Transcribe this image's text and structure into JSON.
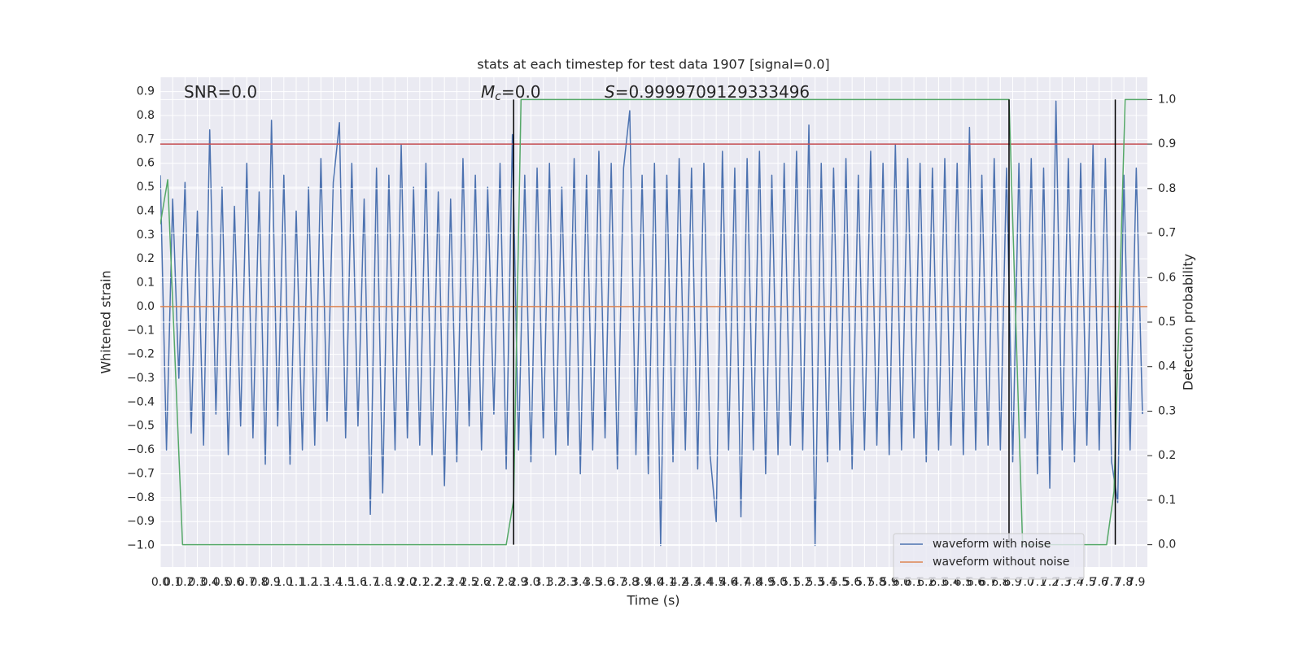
{
  "chart_data": {
    "type": "line",
    "title": "stats at each timestep for test data 1907 [signal=0.0]",
    "xlabel": "Time (s)",
    "ylabel": "Whitened strain",
    "y2label": "Detection probability",
    "annotations": [
      {
        "text": "SNR=0.0"
      },
      {
        "symbol": "M",
        "subscript": "c",
        "text": "=0.0"
      },
      {
        "symbol": "S",
        "text": "=0.9999709129333496"
      }
    ],
    "xlim": [
      0,
      7.99
    ],
    "ylim": [
      -1.09,
      0.96
    ],
    "y2lim": [
      -0.05,
      1.05
    ],
    "grid": true,
    "legend": "lower right",
    "xticks": [
      {
        "value": 0,
        "label": "0.0"
      },
      0.1,
      0.2,
      0.3,
      0.4,
      0.5,
      0.6,
      0.7,
      0.8,
      0.9,
      {
        "value": 1,
        "label": "1.0"
      },
      1.1,
      1.2,
      1.3,
      1.4,
      1.5,
      1.6,
      1.7,
      1.8,
      1.9,
      {
        "value": 2,
        "label": "2.0"
      },
      2.1,
      2.2,
      2.3,
      2.4,
      2.5,
      2.6,
      2.7,
      2.8,
      2.9,
      {
        "value": 3,
        "label": "3.0"
      },
      3.1,
      3.2,
      3.3,
      3.4,
      3.5,
      3.6,
      3.7,
      3.8,
      3.9,
      {
        "value": 4,
        "label": "4.0"
      },
      4.1,
      4.2,
      4.3,
      4.4,
      4.5,
      4.6,
      4.7,
      4.8,
      4.9,
      {
        "value": 5,
        "label": "5.0"
      },
      5.1,
      5.2,
      5.3,
      5.4,
      5.5,
      5.6,
      5.7,
      5.8,
      5.9,
      {
        "value": 6,
        "label": "6.0"
      },
      6.1,
      6.2,
      6.3,
      6.4,
      6.5,
      6.6,
      6.7,
      6.8,
      6.9,
      {
        "value": 7,
        "label": "7.0"
      },
      7.1,
      7.2,
      7.3,
      7.4,
      7.5,
      7.6,
      7.7,
      7.8,
      7.9
    ],
    "yticks": [
      {
        "value": -1.0,
        "label": "−1.0"
      },
      {
        "value": -0.9,
        "label": "−0.9"
      },
      {
        "value": -0.8,
        "label": "−0.8"
      },
      {
        "value": -0.7,
        "label": "−0.7"
      },
      {
        "value": -0.6,
        "label": "−0.6"
      },
      {
        "value": -0.5,
        "label": "−0.5"
      },
      {
        "value": -0.4,
        "label": "−0.4"
      },
      {
        "value": -0.3,
        "label": "−0.3"
      },
      {
        "value": -0.2,
        "label": "−0.2"
      },
      {
        "value": -0.1,
        "label": "−0.1"
      },
      {
        "value": 0,
        "label": "0.0"
      },
      0.1,
      0.2,
      0.3,
      0.4,
      0.5,
      0.6,
      0.7,
      0.8,
      0.9
    ],
    "y2ticks": [
      {
        "value": 0,
        "label": "0.0"
      },
      0.1,
      0.2,
      0.3,
      0.4,
      0.5,
      0.6,
      0.7,
      0.8,
      0.9,
      {
        "value": 1,
        "label": "1.0"
      }
    ],
    "threshold": {
      "value": 0.9,
      "axis": "y2",
      "color": "#c44e52"
    },
    "detections": {
      "x": [
        2.86,
        6.87,
        7.73
      ],
      "ymin": 0,
      "ymax": 1,
      "axis": "y2",
      "color": "#000000"
    },
    "series": [
      {
        "name": "waveform with noise",
        "color": "#4c72b0",
        "x": [
          0,
          0.05,
          0.1,
          0.15,
          0.2,
          0.25,
          0.3,
          0.35,
          0.4,
          0.45,
          0.5,
          0.55,
          0.6,
          0.65,
          0.7,
          0.75,
          0.8,
          0.85,
          0.9,
          0.95,
          1,
          1.05,
          1.1,
          1.15,
          1.2,
          1.25,
          1.3,
          1.35,
          1.4,
          1.45,
          1.5,
          1.55,
          1.6,
          1.65,
          1.7,
          1.75,
          1.8,
          1.85,
          1.9,
          1.95,
          2,
          2.05,
          2.1,
          2.15,
          2.2,
          2.25,
          2.3,
          2.35,
          2.4,
          2.45,
          2.5,
          2.55,
          2.6,
          2.65,
          2.7,
          2.75,
          2.8,
          2.85,
          2.9,
          2.95,
          3,
          3.05,
          3.1,
          3.15,
          3.2,
          3.25,
          3.3,
          3.35,
          3.4,
          3.45,
          3.5,
          3.55,
          3.6,
          3.65,
          3.7,
          3.75,
          3.8,
          3.85,
          3.9,
          3.95,
          4,
          4.05,
          4.1,
          4.15,
          4.2,
          4.25,
          4.3,
          4.35,
          4.4,
          4.45,
          4.5,
          4.55,
          4.6,
          4.65,
          4.7,
          4.75,
          4.8,
          4.85,
          4.9,
          4.95,
          5,
          5.05,
          5.1,
          5.15,
          5.2,
          5.25,
          5.3,
          5.35,
          5.4,
          5.45,
          5.5,
          5.55,
          5.6,
          5.65,
          5.7,
          5.75,
          5.8,
          5.85,
          5.9,
          5.95,
          6,
          6.05,
          6.1,
          6.15,
          6.2,
          6.25,
          6.3,
          6.35,
          6.4,
          6.45,
          6.5,
          6.55,
          6.6,
          6.65,
          6.7,
          6.75,
          6.8,
          6.85,
          6.9,
          6.95,
          7,
          7.05,
          7.1,
          7.15,
          7.2,
          7.25,
          7.3,
          7.35,
          7.4,
          7.45,
          7.5,
          7.55,
          7.6,
          7.65,
          7.7,
          7.75,
          7.8,
          7.85,
          7.9,
          7.95
        ],
        "values": [
          0.55,
          -0.6,
          0.45,
          -0.3,
          0.52,
          -0.53,
          0.4,
          -0.58,
          0.74,
          -0.45,
          0.5,
          -0.62,
          0.42,
          -0.5,
          0.6,
          -0.55,
          0.48,
          -0.66,
          0.78,
          -0.5,
          0.55,
          -0.66,
          0.4,
          -0.6,
          0.5,
          -0.58,
          0.62,
          -0.48,
          0.52,
          0.77,
          -0.55,
          0.6,
          -0.5,
          0.45,
          -0.87,
          0.58,
          -0.78,
          0.55,
          -0.6,
          0.68,
          -0.55,
          0.5,
          -0.58,
          0.6,
          -0.62,
          0.48,
          -0.75,
          0.45,
          -0.65,
          0.62,
          -0.5,
          0.55,
          -0.6,
          0.5,
          -0.45,
          0.6,
          -0.68,
          0.72,
          -0.6,
          0.55,
          -0.65,
          0.58,
          -0.55,
          0.6,
          -0.62,
          0.5,
          -0.58,
          0.62,
          -0.7,
          0.55,
          -0.6,
          0.65,
          -0.55,
          0.6,
          -0.68,
          0.58,
          0.82,
          -0.62,
          0.55,
          -0.7,
          0.6,
          -1.0,
          0.55,
          -0.65,
          0.62,
          -0.6,
          0.58,
          -0.68,
          0.6,
          -0.62,
          -0.9,
          0.65,
          -0.6,
          0.58,
          -0.88,
          0.62,
          -0.6,
          0.65,
          -0.7,
          0.55,
          -0.62,
          0.6,
          -0.58,
          0.65,
          -0.6,
          0.76,
          -1.0,
          0.6,
          -0.65,
          0.58,
          -0.6,
          0.62,
          -0.68,
          0.55,
          -0.6,
          0.65,
          -0.58,
          0.6,
          -0.62,
          0.68,
          -0.6,
          0.62,
          -0.55,
          0.6,
          -0.65,
          0.58,
          -0.6,
          0.62,
          -0.58,
          0.6,
          -0.62,
          0.75,
          -0.6,
          0.55,
          -0.58,
          0.62,
          -0.6,
          0.58,
          -0.65,
          0.6,
          -0.55,
          0.62,
          -0.7,
          0.58,
          -0.76,
          0.86,
          -0.6,
          0.62,
          -0.65,
          0.6,
          -0.58,
          0.68,
          -0.6,
          0.62,
          -0.65,
          -0.82,
          0.55,
          -0.6,
          0.58,
          -0.45
        ]
      },
      {
        "name": "waveform without noise",
        "color": "#dd8452",
        "x": [
          0,
          7.99
        ],
        "values": [
          0,
          0
        ]
      },
      {
        "color": "#55a868",
        "axis": "y2",
        "x": [
          0,
          0.06,
          0.18,
          2.25,
          2.8,
          2.86,
          2.92,
          6.87,
          6.98,
          7.66,
          7.72,
          7.81,
          7.99
        ],
        "values": [
          0.72,
          0.82,
          0,
          0,
          0,
          0.1,
          1,
          1,
          0,
          0,
          0.12,
          1,
          1
        ]
      }
    ]
  }
}
